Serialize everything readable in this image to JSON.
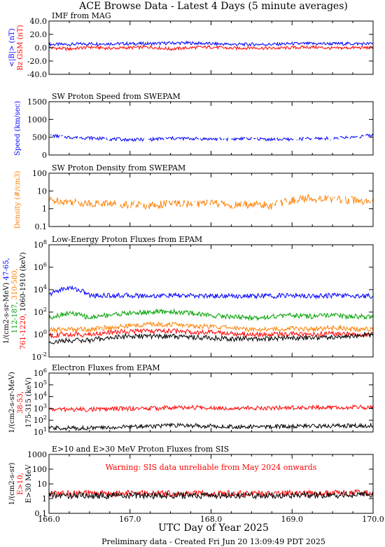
{
  "title": "ACE Browse Data - Latest 4 Days (5 minute averages)",
  "xlabel": "UTC Day of Year 2025",
  "footer": "Preliminary data - Created Fri Jun 20 13:09:49 PDT 2025",
  "xticks": [
    "166.0",
    "167.0",
    "168.0",
    "169.0",
    "170.0"
  ],
  "colors": {
    "blue": "#0000ff",
    "red": "#ff0000",
    "orange": "#ff7f00",
    "green": "#00a000",
    "black": "#000000"
  },
  "chart_data": [
    {
      "type": "line",
      "title": "IMF from MAG",
      "yscale": "linear",
      "ylim": [
        -40,
        40
      ],
      "yticks": [
        "40.0",
        "20.0",
        "0.0",
        "-20.0",
        "-40.0"
      ],
      "ylabel_parts": [
        {
          "text": "<|B|> (nT)",
          "color": "#0000ff"
        },
        {
          "text": "Bz GSM (nT)",
          "color": "#ff0000"
        }
      ],
      "x": [
        166.0,
        166.25,
        166.5,
        166.75,
        167.0,
        167.25,
        167.5,
        167.75,
        168.0,
        168.25,
        168.5,
        168.75,
        169.0,
        169.25,
        169.5,
        169.75,
        170.0
      ],
      "series": [
        {
          "name": "<|B|>",
          "color": "#0000ff",
          "values": [
            5,
            5,
            6,
            6,
            6,
            6,
            7,
            7,
            6,
            5,
            5,
            5,
            6,
            6,
            6,
            6,
            6
          ]
        },
        {
          "name": "Bz GSM",
          "color": "#ff0000",
          "values": [
            0,
            -2,
            1,
            -1,
            0,
            1,
            -2,
            0,
            1,
            -1,
            0,
            -1,
            0,
            1,
            -1,
            0,
            0
          ]
        }
      ]
    },
    {
      "type": "line",
      "title": "SW Proton Speed from SWEPAM",
      "yscale": "linear",
      "ylim": [
        0,
        1500
      ],
      "yticks": [
        "1500",
        "1000",
        "500",
        "0"
      ],
      "ylabel_parts": [
        {
          "text": "Speed (km/sec)",
          "color": "#0000ff"
        }
      ],
      "x": [
        166.0,
        166.25,
        166.5,
        166.75,
        167.0,
        167.25,
        167.5,
        167.75,
        168.0,
        168.25,
        168.5,
        168.75,
        169.0,
        169.25,
        169.5,
        169.75,
        170.0
      ],
      "series": [
        {
          "name": "Speed",
          "color": "#0000ff",
          "values": [
            550,
            500,
            480,
            450,
            430,
            440,
            470,
            460,
            450,
            450,
            460,
            440,
            440,
            460,
            470,
            500,
            560
          ]
        }
      ]
    },
    {
      "type": "line",
      "title": "SW Proton Density from SWEPAM",
      "yscale": "log",
      "ylim": [
        0.1,
        100
      ],
      "yticks": [
        "100",
        "10",
        "1",
        "0.1"
      ],
      "ylabel_parts": [
        {
          "text": "Density (#/cm3)",
          "color": "#ff7f00"
        }
      ],
      "x": [
        166.0,
        166.25,
        166.5,
        166.75,
        167.0,
        167.25,
        167.5,
        167.75,
        168.0,
        168.25,
        168.5,
        168.75,
        169.0,
        169.25,
        169.5,
        169.75,
        170.0
      ],
      "series": [
        {
          "name": "Density",
          "color": "#ff7f00",
          "values": [
            3,
            2.5,
            2,
            2,
            1.8,
            1.5,
            2,
            1.8,
            2,
            1.5,
            1.8,
            1.5,
            3,
            4,
            3.5,
            3,
            2.5
          ]
        }
      ]
    },
    {
      "type": "line",
      "title": "Low-Energy Proton Fluxes from EPAM",
      "yscale": "log",
      "ylim": [
        0.01,
        100000000
      ],
      "yticks": [
        "10^8",
        "10^6",
        "10^4",
        "10^2",
        "10^0",
        "10^-2"
      ],
      "ylabel_parts": [
        {
          "text": "1/(cm2-s-sr-MeV)",
          "color": "#000000"
        },
        {
          "text": "47-65,",
          "color": "#0000ff"
        },
        {
          "text": "112-187,",
          "color": "#00a000"
        },
        {
          "text": "310-580,",
          "color": "#ff7f00"
        },
        {
          "text": "761-1220,",
          "color": "#ff0000"
        },
        {
          "text": "1060-1910 (keV)",
          "color": "#000000"
        }
      ],
      "x": [
        166.0,
        166.25,
        166.5,
        166.75,
        167.0,
        167.25,
        167.5,
        167.75,
        168.0,
        168.25,
        168.5,
        168.75,
        169.0,
        169.25,
        169.5,
        169.75,
        170.0
      ],
      "series": [
        {
          "name": "47-65",
          "color": "#0000ff",
          "values": [
            3000,
            15000,
            3000,
            3000,
            3000,
            2800,
            3000,
            2800,
            2800,
            2700,
            2700,
            2800,
            3000,
            2800,
            3000,
            2800,
            2700
          ]
        },
        {
          "name": "112-187",
          "color": "#00a000",
          "values": [
            30,
            80,
            30,
            60,
            80,
            100,
            110,
            80,
            50,
            40,
            30,
            40,
            50,
            40,
            50,
            40,
            40
          ]
        },
        {
          "name": "310-580",
          "color": "#ff7f00",
          "values": [
            2.5,
            3,
            3,
            4,
            6,
            8,
            8,
            6,
            5,
            4,
            3,
            3,
            3.5,
            3,
            4,
            3,
            3
          ]
        },
        {
          "name": "761-1220",
          "color": "#ff0000",
          "values": [
            0.8,
            1,
            1,
            1.5,
            2,
            2,
            2,
            1.8,
            1.5,
            1.2,
            1,
            1,
            1.2,
            1,
            1.2,
            1,
            1
          ]
        },
        {
          "name": "1060-1910",
          "color": "#000000",
          "values": [
            0.2,
            0.3,
            0.3,
            0.5,
            0.7,
            0.7,
            0.7,
            0.6,
            0.5,
            0.4,
            0.4,
            0.4,
            0.5,
            0.5,
            0.6,
            0.8,
            1
          ]
        }
      ]
    },
    {
      "type": "line",
      "title": "Electron Fluxes from EPAM",
      "yscale": "log",
      "ylim": [
        10,
        10000000
      ],
      "yticks": [
        "10^6",
        "10^5",
        "10^4",
        "10^3",
        "10^2",
        "10^1"
      ],
      "ylabel_parts": [
        {
          "text": "1/(cm2-s-sr-MeV)",
          "color": "#000000"
        },
        {
          "text": "38-53,",
          "color": "#ff0000"
        },
        {
          "text": "175-315 (keV)",
          "color": "#000000"
        }
      ],
      "x": [
        166.0,
        166.25,
        166.5,
        166.75,
        167.0,
        167.25,
        167.5,
        167.75,
        168.0,
        168.25,
        168.5,
        168.75,
        169.0,
        169.25,
        169.5,
        169.75,
        170.0
      ],
      "series": [
        {
          "name": "38-53",
          "color": "#ff0000",
          "values": [
            2000,
            2000,
            2000,
            2200,
            2500,
            2500,
            3000,
            3000,
            3000,
            2800,
            2800,
            2800,
            3000,
            3000,
            3000,
            3200,
            3200
          ]
        },
        {
          "name": "175-315",
          "color": "#000000",
          "values": [
            25,
            25,
            25,
            28,
            35,
            40,
            45,
            45,
            40,
            35,
            35,
            35,
            40,
            40,
            40,
            45,
            45
          ]
        }
      ]
    },
    {
      "type": "line",
      "title": "E>10 and E>30 MeV Proton Fluxes from SIS",
      "annotation": "Warning: SIS data unreliable from May 2024 onwards",
      "yscale": "log",
      "ylim": [
        0.1,
        1000
      ],
      "yticks": [
        "1000",
        "100",
        "10",
        "1",
        "0.1"
      ],
      "ylabel_parts": [
        {
          "text": "1/(cm2-s-sr)",
          "color": "#000000"
        },
        {
          "text": "E>10,",
          "color": "#ff0000"
        },
        {
          "text": "E>30 MeV",
          "color": "#000000"
        }
      ],
      "x": [
        166.0,
        166.25,
        166.5,
        166.75,
        167.0,
        167.25,
        167.5,
        167.75,
        168.0,
        168.25,
        168.5,
        168.75,
        169.0,
        169.25,
        169.5,
        169.75,
        170.0
      ],
      "series": [
        {
          "name": "E>10",
          "color": "#ff0000",
          "values": [
            2.2,
            2.2,
            2.2,
            2.2,
            2.2,
            2.2,
            2.2,
            2.2,
            2.2,
            2.2,
            2.2,
            2.2,
            2.3,
            2.3,
            2.3,
            2.4,
            2.4
          ]
        },
        {
          "name": "E>30",
          "color": "#000000",
          "values": [
            1.6,
            1.6,
            1.6,
            1.6,
            1.6,
            1.6,
            1.6,
            1.6,
            1.6,
            1.6,
            1.6,
            1.6,
            1.7,
            1.7,
            1.7,
            1.8,
            1.8
          ]
        }
      ]
    }
  ]
}
